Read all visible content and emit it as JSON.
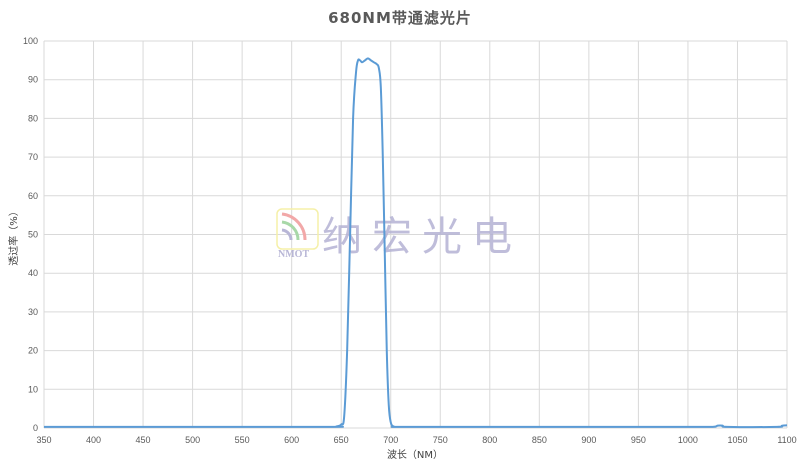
{
  "chart_data": {
    "type": "line",
    "title": "680NM带通滤光片",
    "xlabel": "波长（NM）",
    "ylabel": "透过率（%）",
    "xlim": [
      350,
      1100
    ],
    "ylim": [
      0,
      100
    ],
    "xticks": [
      350,
      400,
      450,
      500,
      550,
      600,
      650,
      700,
      750,
      800,
      850,
      900,
      950,
      1000,
      1050,
      1100
    ],
    "yticks": [
      0,
      10,
      20,
      30,
      40,
      50,
      60,
      70,
      80,
      90,
      100
    ],
    "grid": true,
    "line_color": "#5b9bd5",
    "series": [
      {
        "x": [
          350,
          500,
          640,
          645,
          650,
          653,
          656,
          659,
          662,
          665,
          667,
          669,
          671,
          674,
          677,
          680,
          683,
          686,
          688,
          690,
          692,
          694,
          696,
          698,
          700,
          703,
          710,
          800,
          900,
          1000,
          1025,
          1030,
          1035,
          1040,
          1090,
          1095,
          1100
        ],
        "y": [
          0.3,
          0.3,
          0.3,
          0.4,
          0.9,
          3,
          20,
          50,
          80,
          92,
          95,
          95,
          94.5,
          95,
          95.5,
          95,
          94.5,
          94,
          93,
          88,
          70,
          45,
          20,
          6,
          1.5,
          0.4,
          0.3,
          0.3,
          0.3,
          0.3,
          0.3,
          0.6,
          0.6,
          0.3,
          0.3,
          0.6,
          0.7
        ]
      }
    ]
  },
  "watermark": {
    "text": "纳宏光电",
    "logo_text": "NMOT"
  }
}
